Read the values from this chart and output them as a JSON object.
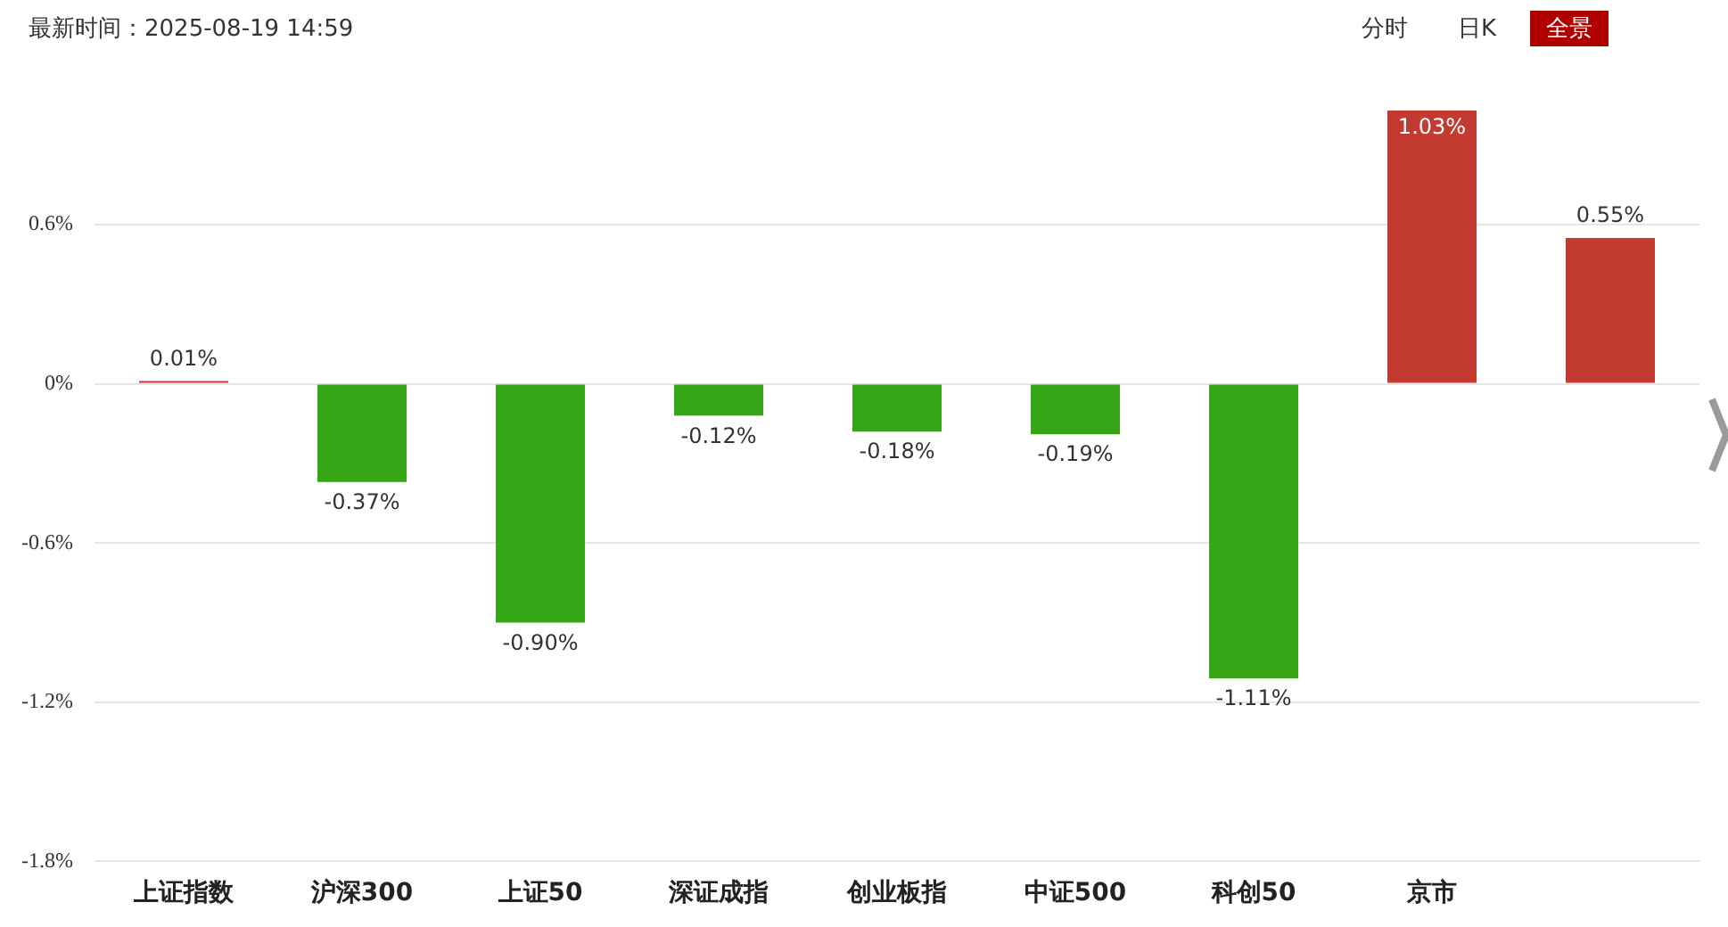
{
  "chart_data": {
    "type": "bar",
    "categories": [
      "上证指数",
      "沪深300",
      "上证50",
      "深证成指",
      "创业板指",
      "中证500",
      "科创50",
      "京市",
      null
    ],
    "values": [
      0.01,
      -0.37,
      -0.9,
      -0.12,
      -0.18,
      -0.19,
      -1.11,
      1.03,
      0.55
    ],
    "colors": [
      "#c23a30",
      "#36a617",
      "#36a617",
      "#36a617",
      "#36a617",
      "#36a617",
      "#36a617",
      "#c23a30",
      "#c23a30"
    ],
    "value_labels": [
      "0.01%",
      "-0.37%",
      "-0.90%",
      "-0.12%",
      "-0.18%",
      "-0.19%",
      "-1.11%",
      "1.03%",
      "0.55%"
    ],
    "ylim": [
      -1.8,
      1.03
    ],
    "yticks": [
      {
        "value": 0.6,
        "label": "0.6%"
      },
      {
        "value": 0,
        "label": "0%"
      },
      {
        "value": -0.6,
        "label": "-0.6%"
      },
      {
        "value": -1.2,
        "label": "-1.2%"
      },
      {
        "value": -1.8,
        "label": "-1.8%"
      }
    ],
    "grid": "y",
    "legend": false,
    "annotations": [
      "最新时间：2025-08-19 14:59",
      "分时",
      "日K",
      "全景"
    ]
  }
}
